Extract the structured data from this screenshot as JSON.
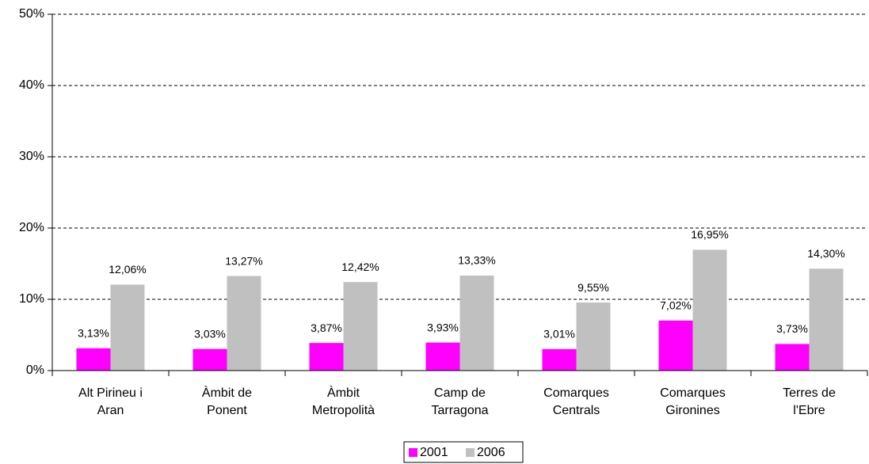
{
  "chart_data": {
    "type": "bar",
    "categories": [
      "Alt Pirineu i Aran",
      "Àmbit de Ponent",
      "Àmbit Metropolità",
      "Camp de Tarragona",
      "Comarques Centrals",
      "Comarques Gironines",
      "Terres de l'Ebre"
    ],
    "series": [
      {
        "name": "2001",
        "color": "#ff00ff",
        "values": [
          3.13,
          3.03,
          3.87,
          3.93,
          3.01,
          7.02,
          3.73
        ],
        "value_labels": [
          "3,13%",
          "3,03%",
          "3,87%",
          "3,93%",
          "3,01%",
          "7,02%",
          "3,73%"
        ]
      },
      {
        "name": "2006",
        "color": "#c0c0c0",
        "values": [
          12.06,
          13.27,
          12.42,
          13.33,
          9.55,
          16.95,
          14.3
        ],
        "value_labels": [
          "12,06%",
          "13,27%",
          "12,42%",
          "13,33%",
          "9,55%",
          "16,95%",
          "14,30%"
        ]
      }
    ],
    "ylim": [
      0,
      50
    ],
    "yticks": [
      {
        "value": 0,
        "label": "0%"
      },
      {
        "value": 10,
        "label": "10%"
      },
      {
        "value": 20,
        "label": "20%"
      },
      {
        "value": 30,
        "label": "30%"
      },
      {
        "value": 40,
        "label": "40%"
      },
      {
        "value": 50,
        "label": "50%"
      }
    ],
    "grid": true,
    "legend": "bottom"
  }
}
